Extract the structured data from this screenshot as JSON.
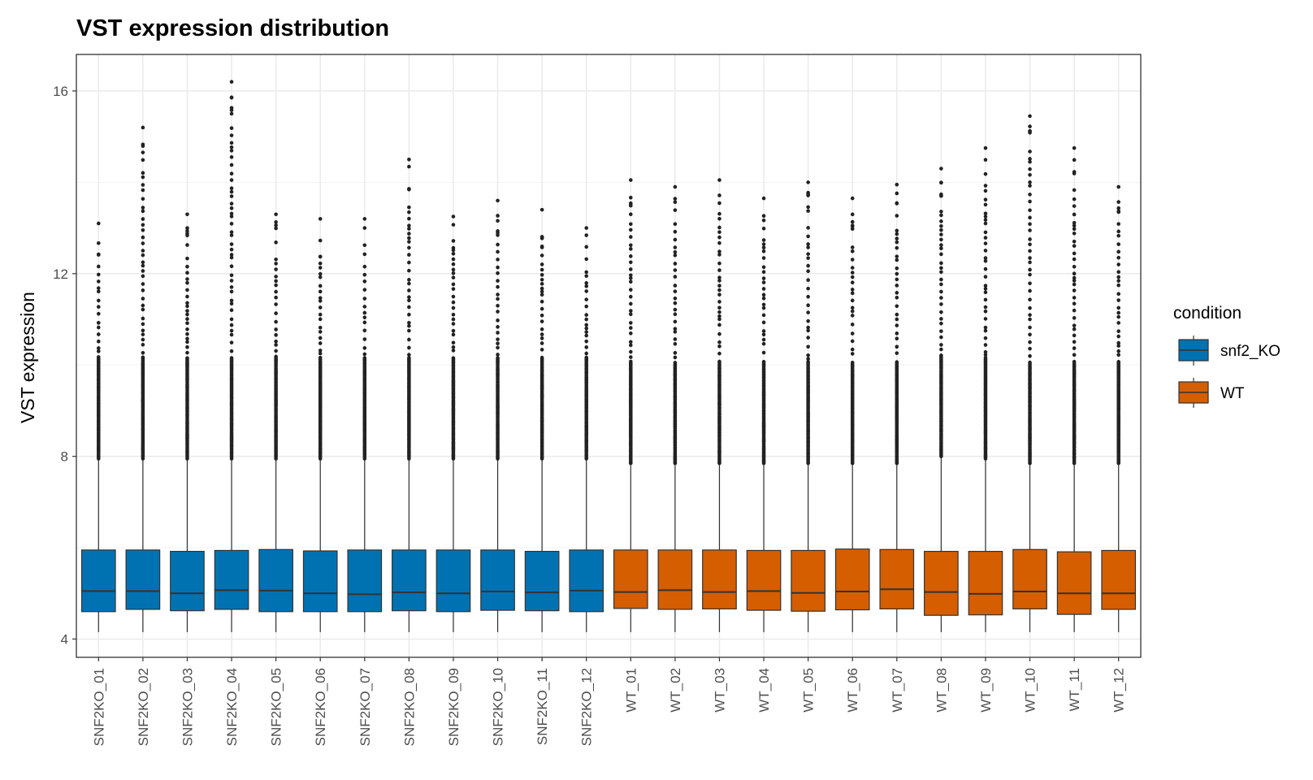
{
  "chart_data": {
    "type": "box",
    "title": "VST expression distribution",
    "xlabel": "",
    "ylabel": "VST expression",
    "ylim": [
      3.6,
      16.8
    ],
    "yticks": [
      4,
      8,
      12,
      16
    ],
    "grid": true,
    "legend": {
      "title": "condition",
      "placement": "right",
      "entries": [
        {
          "label": "snf2_KO",
          "color": "#0072B2"
        },
        {
          "label": "WT",
          "color": "#D55E00"
        }
      ]
    },
    "colors": {
      "snf2_KO": "#0072B2",
      "WT": "#D55E00"
    },
    "categories": [
      "SNF2KO_01",
      "SNF2KO_02",
      "SNF2KO_03",
      "SNF2KO_04",
      "SNF2KO_05",
      "SNF2KO_06",
      "SNF2KO_07",
      "SNF2KO_08",
      "SNF2KO_09",
      "SNF2KO_10",
      "SNF2KO_11",
      "SNF2KO_12",
      "WT_01",
      "WT_02",
      "WT_03",
      "WT_04",
      "WT_05",
      "WT_06",
      "WT_07",
      "WT_08",
      "WT_09",
      "WT_10",
      "WT_11",
      "WT_12"
    ],
    "condition": [
      "snf2_KO",
      "snf2_KO",
      "snf2_KO",
      "snf2_KO",
      "snf2_KO",
      "snf2_KO",
      "snf2_KO",
      "snf2_KO",
      "snf2_KO",
      "snf2_KO",
      "snf2_KO",
      "snf2_KO",
      "WT",
      "WT",
      "WT",
      "WT",
      "WT",
      "WT",
      "WT",
      "WT",
      "WT",
      "WT",
      "WT",
      "WT"
    ],
    "boxes": [
      {
        "whisker_low": 4.15,
        "q1": 4.6,
        "median": 5.05,
        "q3": 5.95,
        "whisker_high": 7.95,
        "max_outlier": 13.1
      },
      {
        "whisker_low": 4.15,
        "q1": 4.65,
        "median": 5.05,
        "q3": 5.95,
        "whisker_high": 7.95,
        "max_outlier": 15.2
      },
      {
        "whisker_low": 4.15,
        "q1": 4.62,
        "median": 5.0,
        "q3": 5.92,
        "whisker_high": 7.95,
        "max_outlier": 13.3
      },
      {
        "whisker_low": 4.15,
        "q1": 4.65,
        "median": 5.07,
        "q3": 5.94,
        "whisker_high": 7.95,
        "max_outlier": 16.2
      },
      {
        "whisker_low": 4.15,
        "q1": 4.6,
        "median": 5.06,
        "q3": 5.96,
        "whisker_high": 7.95,
        "max_outlier": 13.3
      },
      {
        "whisker_low": 4.15,
        "q1": 4.6,
        "median": 5.0,
        "q3": 5.93,
        "whisker_high": 7.95,
        "max_outlier": 13.2
      },
      {
        "whisker_low": 4.15,
        "q1": 4.6,
        "median": 4.98,
        "q3": 5.95,
        "whisker_high": 7.95,
        "max_outlier": 13.2
      },
      {
        "whisker_low": 4.15,
        "q1": 4.62,
        "median": 5.02,
        "q3": 5.95,
        "whisker_high": 7.95,
        "max_outlier": 14.5
      },
      {
        "whisker_low": 4.15,
        "q1": 4.6,
        "median": 5.0,
        "q3": 5.95,
        "whisker_high": 7.95,
        "max_outlier": 13.25
      },
      {
        "whisker_low": 4.15,
        "q1": 4.63,
        "median": 5.04,
        "q3": 5.95,
        "whisker_high": 7.95,
        "max_outlier": 13.6
      },
      {
        "whisker_low": 4.15,
        "q1": 4.62,
        "median": 5.02,
        "q3": 5.92,
        "whisker_high": 7.95,
        "max_outlier": 13.4
      },
      {
        "whisker_low": 4.15,
        "q1": 4.6,
        "median": 5.06,
        "q3": 5.95,
        "whisker_high": 7.95,
        "max_outlier": 13.0
      },
      {
        "whisker_low": 4.15,
        "q1": 4.67,
        "median": 5.03,
        "q3": 5.95,
        "whisker_high": 7.85,
        "max_outlier": 14.05
      },
      {
        "whisker_low": 4.15,
        "q1": 4.65,
        "median": 5.07,
        "q3": 5.95,
        "whisker_high": 7.85,
        "max_outlier": 13.9
      },
      {
        "whisker_low": 4.15,
        "q1": 4.66,
        "median": 5.03,
        "q3": 5.95,
        "whisker_high": 7.85,
        "max_outlier": 14.05
      },
      {
        "whisker_low": 4.15,
        "q1": 4.63,
        "median": 5.05,
        "q3": 5.94,
        "whisker_high": 7.85,
        "max_outlier": 13.65
      },
      {
        "whisker_low": 4.15,
        "q1": 4.61,
        "median": 5.01,
        "q3": 5.94,
        "whisker_high": 7.85,
        "max_outlier": 14.0
      },
      {
        "whisker_low": 4.15,
        "q1": 4.64,
        "median": 5.04,
        "q3": 5.97,
        "whisker_high": 7.85,
        "max_outlier": 13.65
      },
      {
        "whisker_low": 4.15,
        "q1": 4.66,
        "median": 5.09,
        "q3": 5.96,
        "whisker_high": 7.85,
        "max_outlier": 13.95
      },
      {
        "whisker_low": 4.15,
        "q1": 4.52,
        "median": 5.03,
        "q3": 5.92,
        "whisker_high": 8.0,
        "max_outlier": 14.3
      },
      {
        "whisker_low": 4.15,
        "q1": 4.53,
        "median": 4.99,
        "q3": 5.92,
        "whisker_high": 7.95,
        "max_outlier": 14.75
      },
      {
        "whisker_low": 4.15,
        "q1": 4.66,
        "median": 5.04,
        "q3": 5.96,
        "whisker_high": 7.85,
        "max_outlier": 15.45
      },
      {
        "whisker_low": 4.15,
        "q1": 4.54,
        "median": 5.0,
        "q3": 5.91,
        "whisker_high": 7.85,
        "max_outlier": 14.75
      },
      {
        "whisker_low": 4.15,
        "q1": 4.65,
        "median": 5.0,
        "q3": 5.94,
        "whisker_high": 7.85,
        "max_outlier": 13.9
      }
    ]
  }
}
